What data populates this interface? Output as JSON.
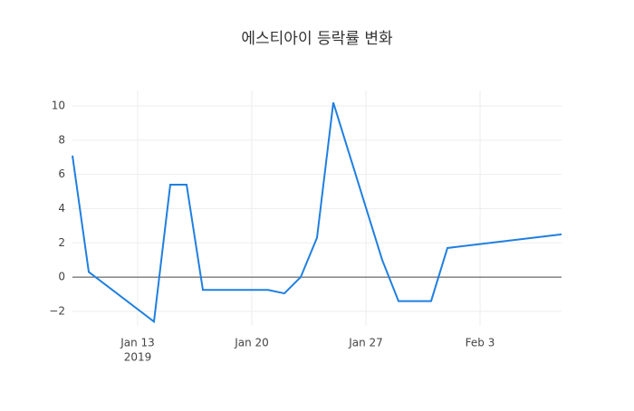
{
  "chart_data": {
    "type": "line",
    "title": "에스티아이 등락률 변화",
    "x": [
      "2019-01-09",
      "2019-01-10",
      "2019-01-14",
      "2019-01-15",
      "2019-01-16",
      "2019-01-17",
      "2019-01-21",
      "2019-01-22",
      "2019-01-23",
      "2019-01-24",
      "2019-01-25",
      "2019-01-28",
      "2019-01-29",
      "2019-01-31",
      "2019-02-01",
      "2019-02-08"
    ],
    "series": [
      {
        "color": "#1f7fe0",
        "values": [
          7.1,
          0.3,
          -2.6,
          5.4,
          5.4,
          -0.75,
          -0.75,
          -0.95,
          0,
          2.3,
          10.2,
          1.0,
          -1.4,
          -1.4,
          1.7,
          2.5
        ]
      }
    ],
    "xlim": [
      "2019-01-09",
      "2019-02-08"
    ],
    "xticks": [
      {
        "value": "2019-01-13",
        "label": "Jan 13"
      },
      {
        "value": "2019-01-20",
        "label": "Jan 20"
      },
      {
        "value": "2019-01-27",
        "label": "Jan 27"
      },
      {
        "value": "2019-02-03",
        "label": "Feb 3"
      }
    ],
    "x_year_label": "2019",
    "ylim": [
      -2.85,
      10.9
    ],
    "yticks": [
      {
        "value": -2,
        "label": "−2"
      },
      0,
      2,
      4,
      6,
      8,
      10
    ],
    "grid": true
  }
}
